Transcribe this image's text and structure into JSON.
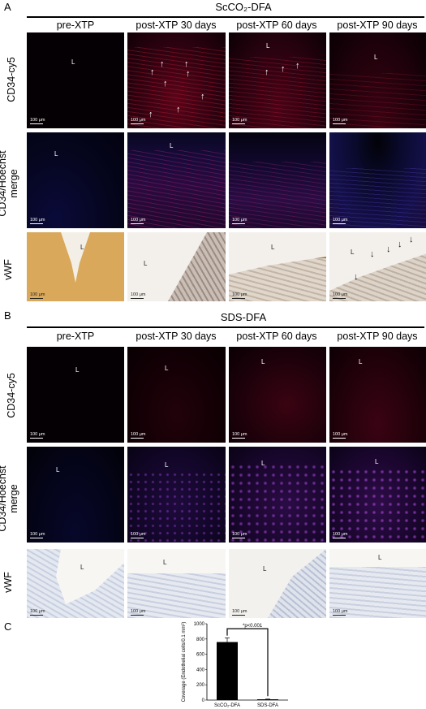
{
  "panel_a": {
    "letter": "A",
    "title": "ScCO₂-DFA",
    "columns": [
      "pre-XTP",
      "post-XTP 30 days",
      "post-XTP 60 days",
      "post-XTP 90 days"
    ],
    "rows": [
      "CD34-cy5",
      "CD34/Hoechst merge",
      "vWF"
    ],
    "lumen_label": "L",
    "scale_label": "100 μm"
  },
  "panel_b": {
    "letter": "B",
    "title": "SDS-DFA",
    "columns": [
      "pre-XTP",
      "post-XTP 30 days",
      "post-XTP 60 days",
      "post-XTP 90 days"
    ],
    "rows": [
      "CD34-cy5",
      "CD34/Hoechst merge",
      "vWF"
    ],
    "lumen_label": "L",
    "scale_label": "100 μm"
  },
  "panel_c": {
    "letter": "C",
    "significance": "*p<0.001"
  },
  "chart_data": {
    "type": "bar",
    "categories": [
      "ScCO₂-DFA",
      "SDS-DFA"
    ],
    "values": [
      760,
      10
    ],
    "errors": [
      55,
      3
    ],
    "ylabel": "Coverage (Endothelial cells/0.1 mm²)",
    "ylim": [
      0,
      1000
    ],
    "yticks": [
      0,
      200,
      400,
      600,
      800,
      1000
    ],
    "colors": [
      "#000000",
      "#000000"
    ]
  }
}
